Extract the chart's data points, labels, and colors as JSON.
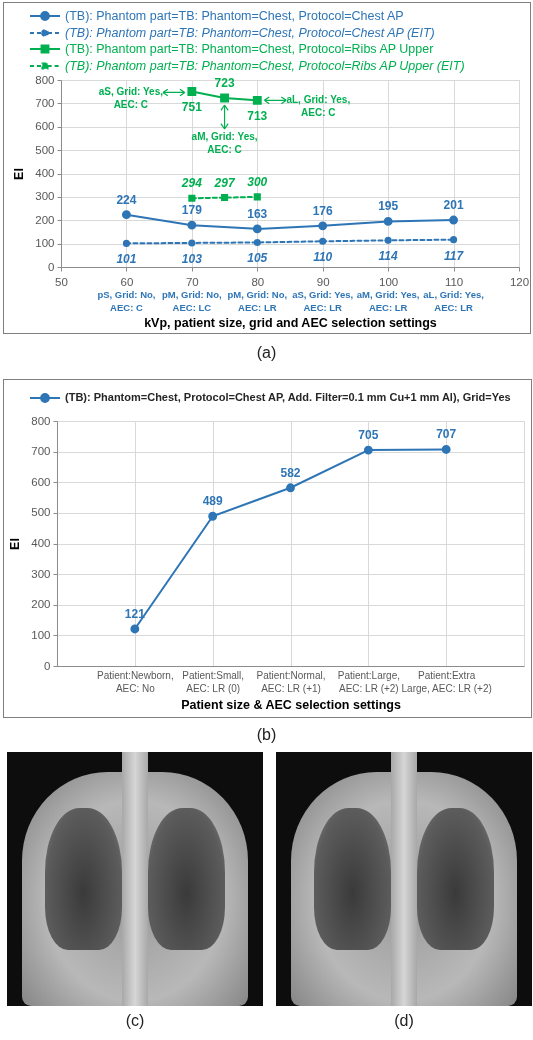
{
  "chart_data": [
    {
      "type": "line",
      "xlabel": "kVp, patient size, grid and AEC selection settings",
      "ylabel": "EI",
      "xlim": [
        50,
        120
      ],
      "xticks": [
        50,
        60,
        70,
        80,
        90,
        100,
        110,
        120
      ],
      "ylim": [
        0,
        800
      ],
      "yticks": [
        0,
        100,
        200,
        300,
        400,
        500,
        600,
        700,
        800
      ],
      "grid": true,
      "legend": "top",
      "data_labels": true,
      "series": [
        {
          "name": "(TB): Phantom part=TB: Phantom=Chest, Protocol=Chest AP",
          "color": "#2e75b6",
          "marker": "circle",
          "line_style": "solid",
          "x": [
            60,
            70,
            80,
            90,
            100,
            110
          ],
          "values": [
            224,
            179,
            163,
            176,
            195,
            201
          ]
        },
        {
          "name": "(TB): Phantom part=TB: Phantom=Chest, Protocol=Chest AP (EIT)",
          "color": "#2e75b6",
          "marker": "circle",
          "line_style": "dashed",
          "x": [
            60,
            70,
            80,
            90,
            100,
            110
          ],
          "values": [
            101,
            103,
            105,
            110,
            114,
            117
          ]
        },
        {
          "name": "(TB): Phantom part=TB: Phantom=Chest, Protocol=Ribs AP Upper",
          "color": "#00b050",
          "marker": "square",
          "line_style": "solid",
          "x": [
            70,
            75,
            80
          ],
          "values": [
            751,
            723,
            713
          ]
        },
        {
          "name": "(TB): Phantom part=TB: Phantom=Chest, Protocol=Ribs AP Upper (EIT)",
          "color": "#00b050",
          "marker": "square",
          "line_style": "dashed",
          "x": [
            70,
            75,
            80
          ],
          "values": [
            294,
            297,
            300
          ]
        }
      ],
      "annotations": [
        {
          "text": "aS, Grid: Yes, AEC: C",
          "x": 70,
          "y": 751
        },
        {
          "text": "aM, Grid: Yes, AEC: C",
          "x": 75,
          "y": 723
        },
        {
          "text": "aL, Grid: Yes, AEC: C",
          "x": 80,
          "y": 713
        },
        "pS, Grid: No, AEC: C",
        "pM, Grid: No, AEC: LC",
        "pM, Grid: No, AEC: LR",
        "aS, Grid: Yes, AEC: LR",
        "aM, Grid: Yes, AEC: LR",
        "aL, Grid: Yes, AEC: LR",
        "(a)"
      ]
    },
    {
      "type": "line",
      "xlabel": "Patient size & AEC selection settings",
      "ylabel": "EI",
      "categories": [
        "Patient:Newborn, AEC: No",
        "Patient:Small, AEC: LR (0)",
        "Patient:Normal, AEC: LR (+1)",
        "Patient:Large, AEC: LR (+2)",
        "Patient:Extra Large, AEC: LR (+2)"
      ],
      "ylim": [
        0,
        800
      ],
      "yticks": [
        0,
        100,
        200,
        300,
        400,
        500,
        600,
        700,
        800
      ],
      "grid": true,
      "legend": "top",
      "data_labels": true,
      "marker": "circle",
      "line_style": "solid",
      "series": [
        {
          "name": "(TB): Phantom=Chest, Protocol=Chest AP, Add. Filter=0.1 mm Cu+1 mm Al), Grid=Yes",
          "color": "#2e75b6",
          "values": [
            121,
            489,
            582,
            705,
            707
          ]
        }
      ],
      "annotations": [
        "(b)"
      ]
    },
    {
      "type": "other",
      "annotations": [
        "(c)",
        "(d)"
      ]
    }
  ]
}
